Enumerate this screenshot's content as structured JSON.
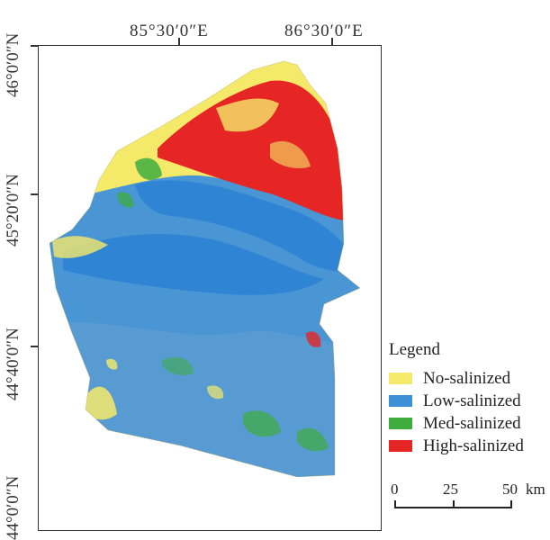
{
  "map": {
    "longitude_labels": [
      "85°30′0″E",
      "86°30′0″E"
    ],
    "latitude_labels": [
      "46°0′0″N",
      "45°20′0″N",
      "44°40′0″N",
      "44°0′0″N"
    ],
    "region_fill": "mixed salinization classes"
  },
  "legend": {
    "title": "Legend",
    "items": [
      {
        "label": "No-salinized",
        "color": "#f5e96a"
      },
      {
        "label": "Low-salinized",
        "color": "#3d8fd6"
      },
      {
        "label": "Med-salinized",
        "color": "#3ead3e"
      },
      {
        "label": "High-salinized",
        "color": "#e52624"
      }
    ]
  },
  "scale_bar": {
    "labels": [
      "0",
      "25",
      "50"
    ],
    "unit": "km"
  }
}
